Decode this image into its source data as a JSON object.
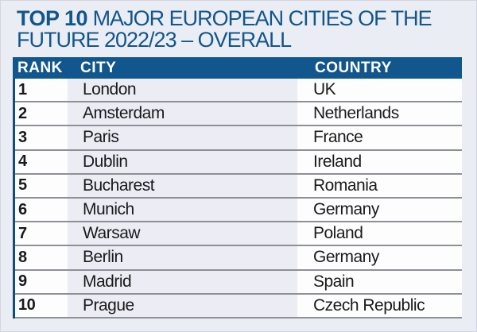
{
  "title": {
    "strong": "TOP 10",
    "line1_rest": " MAJOR EUROPEAN CITIES OF THE",
    "line2": "FUTURE 2022/23 – OVERALL"
  },
  "table": {
    "headers": [
      "RANK",
      "CITY",
      "COUNTRY"
    ],
    "rows": [
      {
        "rank": "1",
        "city": "London",
        "country": "UK"
      },
      {
        "rank": "2",
        "city": "Amsterdam",
        "country": "Netherlands"
      },
      {
        "rank": "3",
        "city": "Paris",
        "country": "France"
      },
      {
        "rank": "4",
        "city": "Dublin",
        "country": "Ireland"
      },
      {
        "rank": "5",
        "city": "Bucharest",
        "country": "Romania"
      },
      {
        "rank": "6",
        "city": "Munich",
        "country": "Germany"
      },
      {
        "rank": "7",
        "city": "Warsaw",
        "country": "Poland"
      },
      {
        "rank": "8",
        "city": "Berlin",
        "country": "Germany"
      },
      {
        "rank": "9",
        "city": "Madrid",
        "country": "Spain"
      },
      {
        "rank": "10",
        "city": "Prague",
        "country": "Czech Republic"
      }
    ]
  },
  "colors": {
    "accent_blue": "#11568c",
    "left_border_blue": "#0f4d80",
    "page_background": "#ebedf5",
    "city_column_background": "#ececf4",
    "row_background": "#fdfdfe",
    "separator_gray": "#8f9096",
    "text_black": "#1a1a1c"
  },
  "chart_data": {
    "type": "table",
    "title": "TOP 10 MAJOR EUROPEAN CITIES OF THE FUTURE 2022/23 – OVERALL",
    "columns": [
      "RANK",
      "CITY",
      "COUNTRY"
    ],
    "rows": [
      [
        1,
        "London",
        "UK"
      ],
      [
        2,
        "Amsterdam",
        "Netherlands"
      ],
      [
        3,
        "Paris",
        "France"
      ],
      [
        4,
        "Dublin",
        "Ireland"
      ],
      [
        5,
        "Bucharest",
        "Romania"
      ],
      [
        6,
        "Munich",
        "Germany"
      ],
      [
        7,
        "Warsaw",
        "Poland"
      ],
      [
        8,
        "Berlin",
        "Germany"
      ],
      [
        9,
        "Madrid",
        "Spain"
      ],
      [
        10,
        "Prague",
        "Czech Republic"
      ]
    ]
  }
}
